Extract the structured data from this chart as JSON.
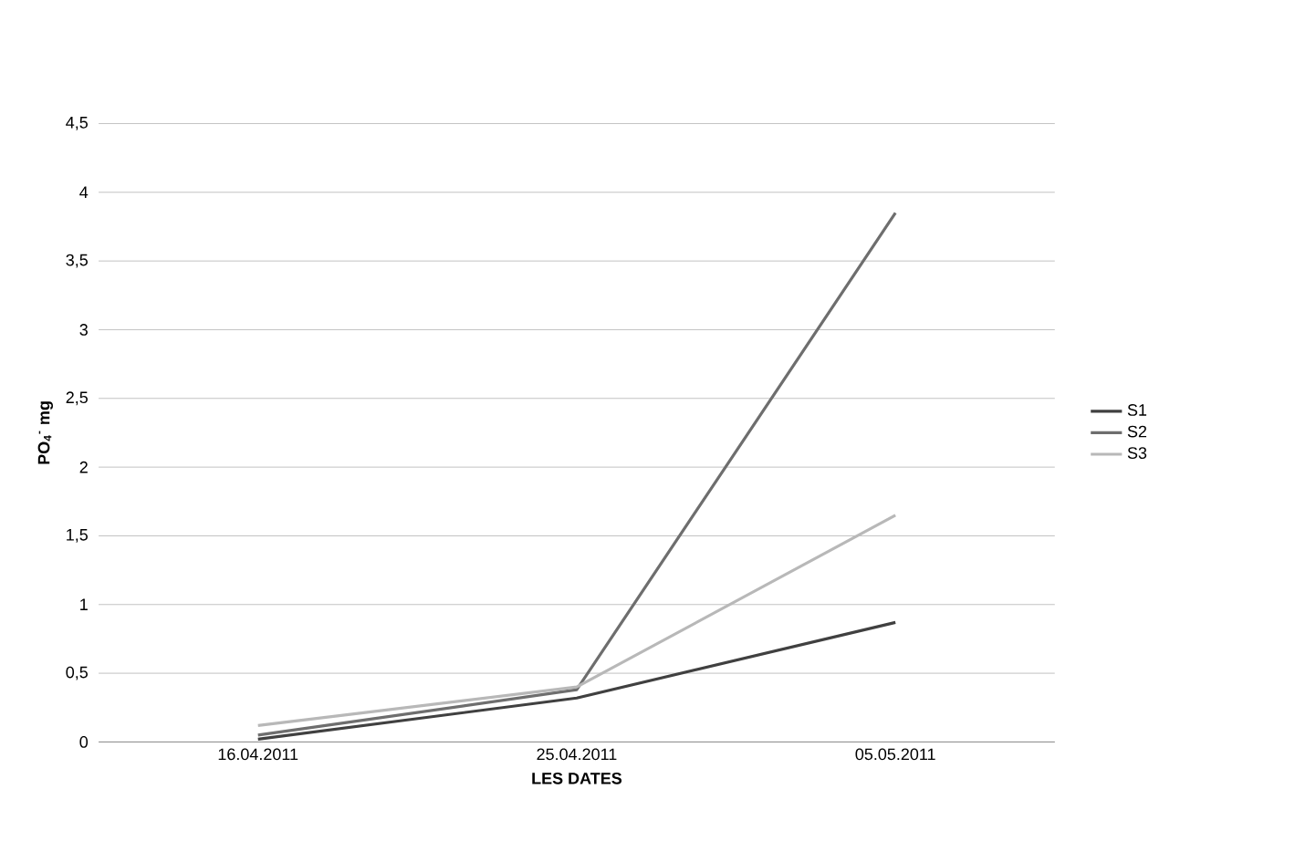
{
  "chart_data": {
    "type": "line",
    "xlabel": "LES DATES",
    "ylabel": "PO$_{4}$$^{-}$ mg",
    "categories": [
      "16.04.2011",
      "25.04.2011",
      "05.05.2011"
    ],
    "series": [
      {
        "name": "S1",
        "color": "#404040",
        "values": [
          0.02,
          0.32,
          0.87
        ]
      },
      {
        "name": "S2",
        "color": "#6e6e6e",
        "values": [
          0.05,
          0.38,
          3.85
        ]
      },
      {
        "name": "S3",
        "color": "#b8b8b8",
        "values": [
          0.12,
          0.4,
          1.65
        ]
      }
    ],
    "ylim": [
      0,
      4.5
    ],
    "yticks": [
      0,
      {
        "value": 0.5,
        "label": "0,5"
      },
      1,
      {
        "value": 1.5,
        "label": "1,5"
      },
      2,
      {
        "value": 2.5,
        "label": "2,5"
      },
      3,
      {
        "value": 3.5,
        "label": "3,5"
      },
      4,
      {
        "value": 4.5,
        "label": "4,5"
      }
    ],
    "grid": "y",
    "legend": "right",
    "marker": "none",
    "line_style": "solid"
  }
}
